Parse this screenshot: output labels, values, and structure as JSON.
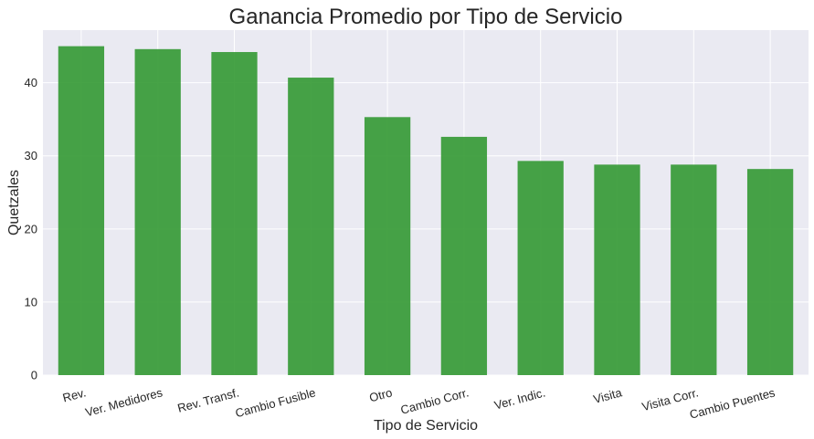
{
  "chart_data": {
    "type": "bar",
    "title": "Ganancia Promedio por Tipo de Servicio",
    "xlabel": "Tipo de Servicio",
    "ylabel": "Quetzales",
    "categories": [
      "Rev.",
      "Ver. Medidores",
      "Rev. Transf.",
      "Cambio Fusible",
      "Otro",
      "Cambio Corr.",
      "Ver. Indic.",
      "Visita",
      "Visita Corr.",
      "Cambio Puentes"
    ],
    "values": [
      45.0,
      44.6,
      44.2,
      40.7,
      35.3,
      32.6,
      29.3,
      28.8,
      28.8,
      28.2
    ],
    "ylim": [
      0,
      47.2
    ],
    "yticks": [
      0,
      10,
      20,
      30,
      40
    ],
    "grid": true,
    "bar_color": "#2e962e",
    "background_color": "#eaeaf2",
    "grid_color": "#ffffff",
    "legend": "none"
  }
}
